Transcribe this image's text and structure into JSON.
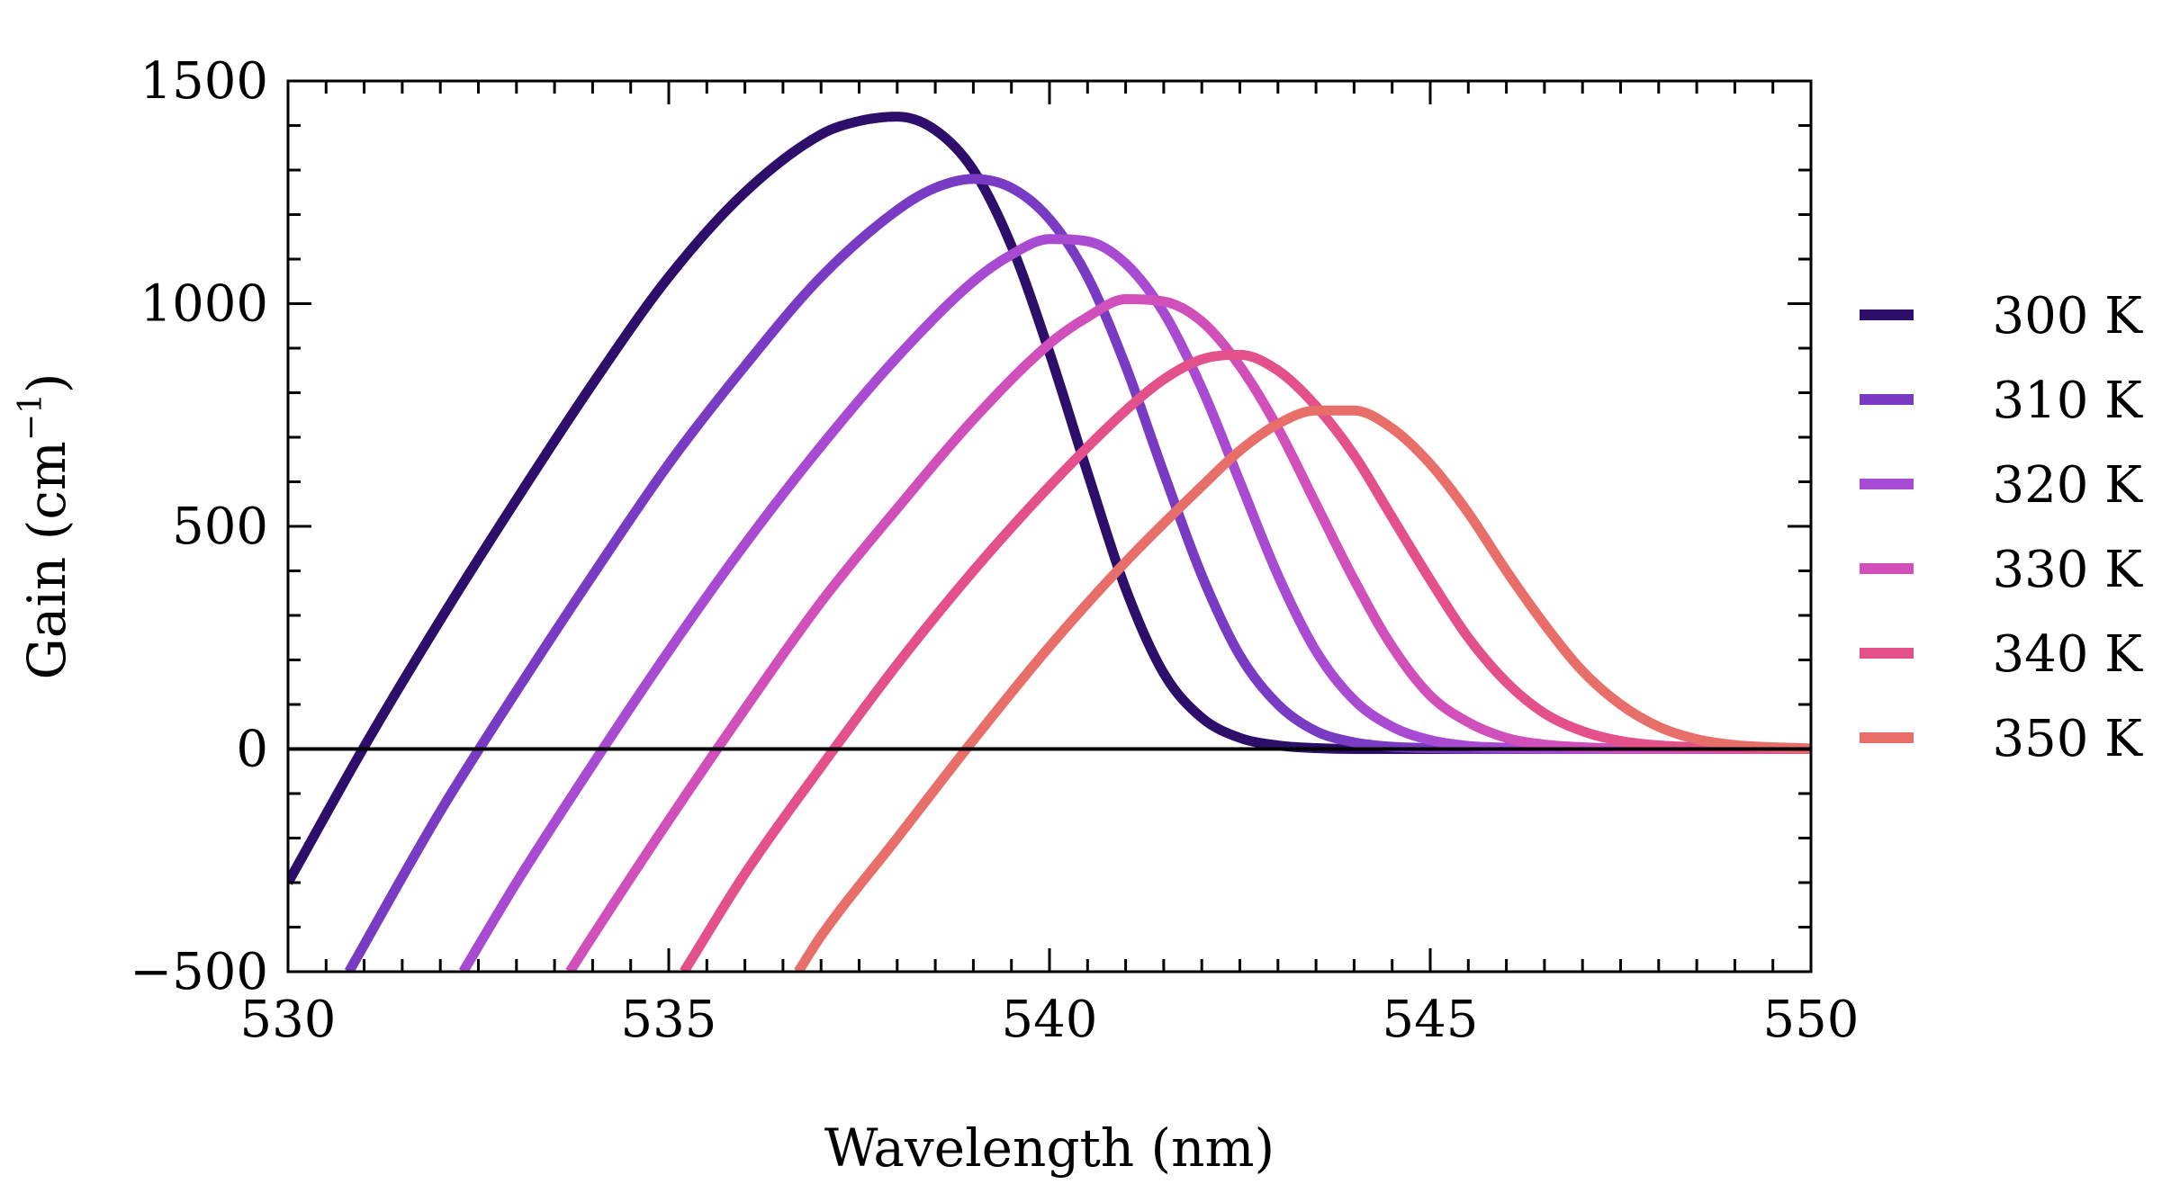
{
  "chart_data": {
    "type": "line",
    "title": "",
    "xlabel": "Wavelength (nm)",
    "ylabel": "Gain (cm",
    "ylabel_exponent": "−1",
    "ylabel_close": ")",
    "xlim": [
      530,
      550
    ],
    "ylim": [
      -500,
      1500
    ],
    "x_ticks": [
      530,
      535,
      540,
      545,
      550
    ],
    "x_tick_labels": [
      "530",
      "535",
      "540",
      "545",
      "550"
    ],
    "y_ticks": [
      -500,
      0,
      500,
      1000,
      1500
    ],
    "y_tick_labels": [
      "−500",
      "0",
      "500",
      "1000",
      "1500"
    ],
    "grid": false,
    "legend_position": "right",
    "zero_line": true,
    "series": [
      {
        "name": "300 K",
        "color": "#2d0f6b",
        "x": [
          530,
          531,
          532,
          533,
          534,
          535,
          536,
          537,
          537.5,
          538,
          538.5,
          539,
          539.5,
          540,
          540.5,
          541,
          541.5,
          542,
          542.5,
          543,
          543.5,
          544,
          545,
          550
        ],
        "y": [
          -300,
          5,
          290,
          560,
          820,
          1060,
          1250,
          1380,
          1410,
          1420,
          1390,
          1300,
          1130,
          890,
          620,
          360,
          170,
          70,
          25,
          8,
          2,
          0,
          0,
          0
        ]
      },
      {
        "name": "310 K",
        "color": "#7a3bc4",
        "x": [
          530.8,
          532,
          533,
          534,
          535,
          536,
          537,
          538,
          538.5,
          539,
          539.5,
          540,
          540.5,
          541,
          541.5,
          542,
          542.5,
          543,
          543.5,
          544,
          544.5,
          545,
          546,
          550
        ],
        "y": [
          -500,
          -140,
          130,
          390,
          640,
          860,
          1060,
          1210,
          1260,
          1280,
          1260,
          1190,
          1060,
          860,
          620,
          390,
          210,
          100,
          40,
          15,
          5,
          2,
          0,
          0
        ]
      },
      {
        "name": "320 K",
        "color": "#a94ad2",
        "x": [
          532.3,
          533,
          534,
          535,
          536,
          537,
          538,
          539,
          539.5,
          540,
          540.5,
          541,
          541.5,
          542,
          542.5,
          543,
          543.5,
          544,
          544.5,
          545,
          545.5,
          546,
          547,
          550
        ],
        "y": [
          -500,
          -300,
          -35,
          220,
          460,
          680,
          880,
          1050,
          1110,
          1145,
          1140,
          1090,
          980,
          810,
          600,
          390,
          220,
          110,
          50,
          20,
          7,
          3,
          0,
          0
        ]
      },
      {
        "name": "330 K",
        "color": "#d04fba",
        "x": [
          533.7,
          534,
          535,
          536,
          537,
          538,
          539,
          540,
          540.5,
          541,
          541.5,
          542,
          542.5,
          543,
          543.5,
          544,
          544.5,
          545,
          545.5,
          546,
          546.5,
          547,
          548,
          550
        ],
        "y": [
          -500,
          -420,
          -160,
          90,
          330,
          540,
          740,
          910,
          970,
          1010,
          1005,
          960,
          860,
          720,
          550,
          380,
          230,
          120,
          60,
          25,
          10,
          4,
          0,
          0
        ]
      },
      {
        "name": "340 K",
        "color": "#e3508a",
        "x": [
          535.2,
          536,
          537,
          538,
          539,
          540,
          541,
          541.5,
          542,
          542.5,
          543,
          543.5,
          544,
          544.5,
          545,
          545.5,
          546,
          546.5,
          547,
          547.5,
          548,
          549,
          550
        ],
        "y": [
          -500,
          -280,
          -40,
          190,
          400,
          590,
          760,
          830,
          875,
          885,
          850,
          770,
          660,
          520,
          380,
          250,
          150,
          80,
          40,
          18,
          8,
          2,
          0
        ]
      },
      {
        "name": "350 K",
        "color": "#e86e6a",
        "x": [
          536.7,
          537,
          538,
          539,
          540,
          541,
          542,
          542.5,
          543,
          543.5,
          544,
          544.5,
          545,
          545.5,
          546,
          546.5,
          547,
          547.5,
          548,
          548.5,
          549,
          550
        ],
        "y": [
          -500,
          -420,
          -200,
          20,
          230,
          420,
          590,
          670,
          730,
          760,
          760,
          720,
          640,
          530,
          400,
          280,
          175,
          100,
          50,
          22,
          9,
          1
        ]
      }
    ]
  }
}
